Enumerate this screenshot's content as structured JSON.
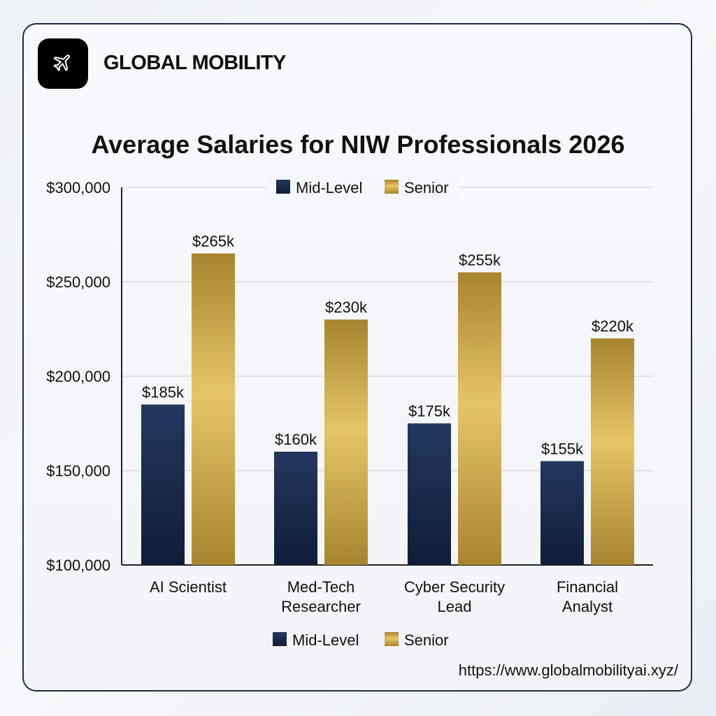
{
  "brand": {
    "name": "GLOBAL MOBILITY",
    "logo_icon": "airplane-icon"
  },
  "source_url": "https://www.globalmobilityai.xyz/",
  "chart_data": {
    "type": "bar",
    "title": "Average Salaries for NIW Professionals 2026",
    "xlabel": "",
    "ylabel": "",
    "categories": [
      [
        "AI Scientist"
      ],
      [
        "Med-Tech",
        "Researcher"
      ],
      [
        "Cyber Security",
        "Lead"
      ],
      [
        "Financial",
        "Analyst"
      ]
    ],
    "series": [
      {
        "name": "Mid-Level",
        "values": [
          185000,
          160000,
          175000,
          155000
        ],
        "labels": [
          "$185k",
          "$160k",
          "$175k",
          "$155k"
        ],
        "color": "#1b2d52"
      },
      {
        "name": "Senior",
        "values": [
          265000,
          230000,
          255000,
          220000
        ],
        "labels": [
          "$265k",
          "$230k",
          "$255k",
          "$220k"
        ],
        "color": "#c9a648"
      }
    ],
    "ylim": [
      100000,
      300000
    ],
    "yticks": [
      100000,
      150000,
      200000,
      250000,
      300000
    ],
    "ytick_labels": [
      "$100,000",
      "$150,000",
      "$200,000",
      "$250,000",
      "$300,000"
    ],
    "grid": true,
    "legend_positions": [
      "top",
      "bottom"
    ]
  }
}
